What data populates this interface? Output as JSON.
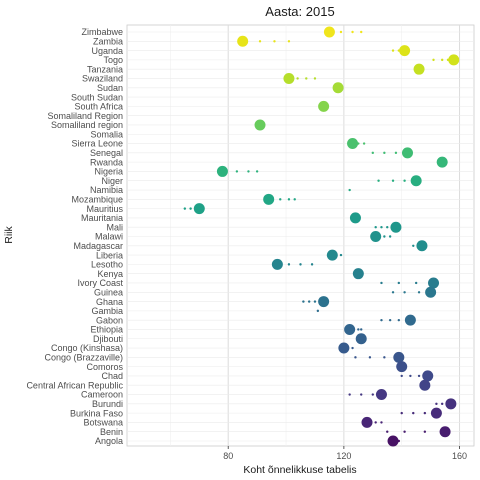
{
  "chart_data": {
    "type": "scatter",
    "title": "Aasta: 2015",
    "xlabel": "Koht õnnelikkuse tabelis",
    "ylabel": "Riik",
    "xlim": [
      45,
      165
    ],
    "xticks": [
      80,
      120,
      160
    ],
    "grid": true,
    "legend": "none",
    "countries": [
      {
        "name": "Zimbabwe",
        "x": 115,
        "trail": [
          119,
          123,
          126
        ],
        "color": "#f0e51c"
      },
      {
        "name": "Zambia",
        "x": 85,
        "trail": [
          91,
          96,
          101
        ],
        "color": "#e7e419"
      },
      {
        "name": "Uganda",
        "x": 141,
        "trail": [
          137,
          139
        ],
        "color": "#dde318"
      },
      {
        "name": "Togo",
        "x": 158,
        "trail": [
          151,
          154,
          156
        ],
        "color": "#d2e21b"
      },
      {
        "name": "Tanzania",
        "x": 146,
        "trail": [],
        "color": "#c5e021"
      },
      {
        "name": "Swaziland",
        "x": 101,
        "trail": [
          104,
          107,
          110
        ],
        "color": "#b5de2b"
      },
      {
        "name": "Sudan",
        "x": 118,
        "trail": [],
        "color": "#a5db36"
      },
      {
        "name": "South Sudan",
        "x": null,
        "trail": [],
        "color": "#95d840"
      },
      {
        "name": "South Africa",
        "x": 113,
        "trail": [],
        "color": "#84d44b"
      },
      {
        "name": "Somaliland Region",
        "x": null,
        "trail": [],
        "color": "#75d054"
      },
      {
        "name": "Somaliland region",
        "x": 91,
        "trail": [],
        "color": "#67cc5c"
      },
      {
        "name": "Somalia",
        "x": null,
        "trail": [],
        "color": "#58c765"
      },
      {
        "name": "Sierra Leone",
        "x": 123,
        "trail": [
          125,
          127
        ],
        "color": "#4ac16d"
      },
      {
        "name": "Senegal",
        "x": 142,
        "trail": [
          130,
          134,
          138
        ],
        "color": "#3fbc73"
      },
      {
        "name": "Rwanda",
        "x": 154,
        "trail": [],
        "color": "#35b779"
      },
      {
        "name": "Nigeria",
        "x": 78,
        "trail": [
          83,
          87,
          90
        ],
        "color": "#2db27d"
      },
      {
        "name": "Niger",
        "x": 145,
        "trail": [
          132,
          137,
          141
        ],
        "color": "#28ae80"
      },
      {
        "name": "Namibia",
        "x": null,
        "trail": [
          122
        ],
        "color": "#24aa83"
      },
      {
        "name": "Mozambique",
        "x": 94,
        "trail": [
          98,
          101,
          103
        ],
        "color": "#22a785"
      },
      {
        "name": "Mauritius",
        "x": 70,
        "trail": [
          65,
          67
        ],
        "color": "#1fa187"
      },
      {
        "name": "Mauritania",
        "x": 124,
        "trail": [],
        "color": "#1e9b8a"
      },
      {
        "name": "Mali",
        "x": 138,
        "trail": [
          131,
          133,
          135
        ],
        "color": "#1f978b"
      },
      {
        "name": "Malawi",
        "x": 131,
        "trail": [
          134,
          136
        ],
        "color": "#20928c"
      },
      {
        "name": "Madagascar",
        "x": 147,
        "trail": [
          144
        ],
        "color": "#218e8d"
      },
      {
        "name": "Liberia",
        "x": 116,
        "trail": [
          119
        ],
        "color": "#23898e"
      },
      {
        "name": "Lesotho",
        "x": 97,
        "trail": [
          101,
          105,
          109
        ],
        "color": "#25848e"
      },
      {
        "name": "Kenya",
        "x": 125,
        "trail": [],
        "color": "#26818e"
      },
      {
        "name": "Ivory Coast",
        "x": 151,
        "trail": [
          133,
          139,
          145
        ],
        "color": "#287c8e"
      },
      {
        "name": "Guinea",
        "x": 150,
        "trail": [
          137,
          141,
          146
        ],
        "color": "#2a778e"
      },
      {
        "name": "Ghana",
        "x": 113,
        "trail": [
          106,
          108,
          110
        ],
        "color": "#2c728e"
      },
      {
        "name": "Gambia",
        "x": null,
        "trail": [
          111
        ],
        "color": "#2e6d8e"
      },
      {
        "name": "Gabon",
        "x": 143,
        "trail": [
          133,
          136,
          139
        ],
        "color": "#306a8e"
      },
      {
        "name": "Ethiopia",
        "x": 122,
        "trail": [
          125,
          126
        ],
        "color": "#32658e"
      },
      {
        "name": "Djibouti",
        "x": 126,
        "trail": [],
        "color": "#34618d"
      },
      {
        "name": "Congo (Kinshasa)",
        "x": 120,
        "trail": [
          123
        ],
        "color": "#375b8d"
      },
      {
        "name": "Congo (Brazzaville)",
        "x": 139,
        "trail": [
          124,
          129,
          134
        ],
        "color": "#39568c"
      },
      {
        "name": "Comoros",
        "x": 140,
        "trail": [],
        "color": "#3c508b"
      },
      {
        "name": "Chad",
        "x": 149,
        "trail": [
          140,
          143,
          146
        ],
        "color": "#3f4a8a"
      },
      {
        "name": "Central African Republic",
        "x": 148,
        "trail": [],
        "color": "#424488"
      },
      {
        "name": "Cameroon",
        "x": 133,
        "trail": [
          122,
          126,
          130
        ],
        "color": "#453882"
      },
      {
        "name": "Burundi",
        "x": 157,
        "trail": [
          152,
          154
        ],
        "color": "#46327e"
      },
      {
        "name": "Burkina Faso",
        "x": 152,
        "trail": [
          140,
          144,
          148
        ],
        "color": "#472c7a"
      },
      {
        "name": "Botswana",
        "x": 128,
        "trail": [
          131,
          133
        ],
        "color": "#482576"
      },
      {
        "name": "Benin",
        "x": 155,
        "trail": [
          135,
          141,
          148
        ],
        "color": "#481d6f"
      },
      {
        "name": "Angola",
        "x": 137,
        "trail": [
          139
        ],
        "color": "#471164"
      }
    ]
  }
}
